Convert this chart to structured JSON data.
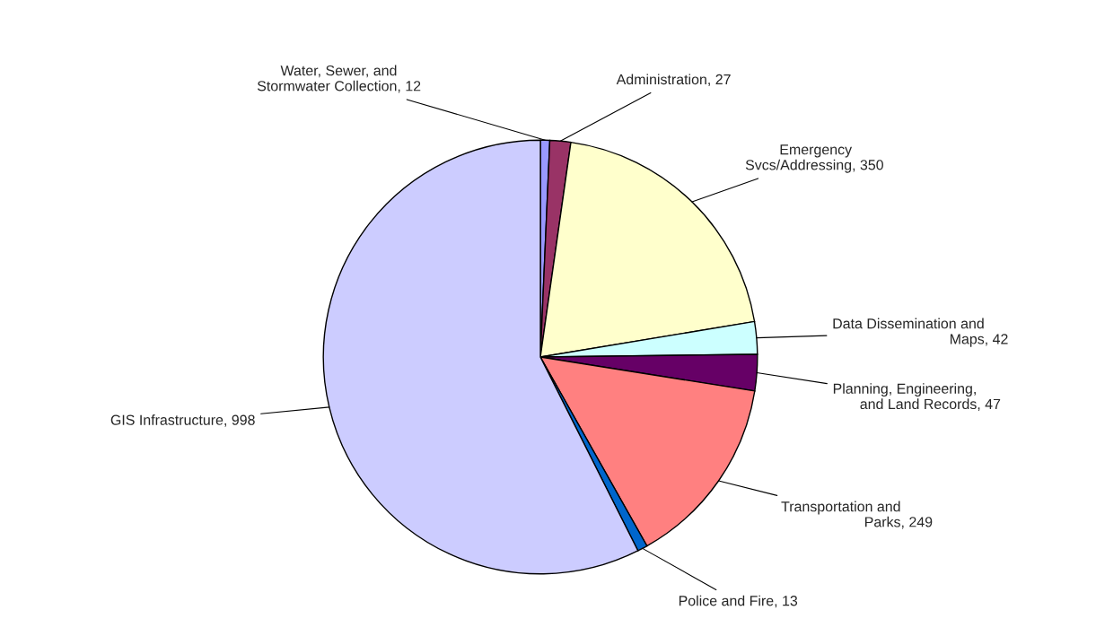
{
  "chart_data": {
    "type": "pie",
    "categories": [
      "Water, Sewer, and\nStormwater Collection",
      "Administration",
      "Emergency\nSvcs/Addressing",
      "Data Dissemination and\nMaps",
      "Planning, Engineering,\nand Land Records",
      "Transportation and\nParks",
      "Police and Fire",
      "GIS Infrastructure"
    ],
    "values": [
      12,
      27,
      350,
      42,
      47,
      249,
      13,
      998
    ],
    "colors": [
      "#9999ff",
      "#993366",
      "#ffffcc",
      "#ccffff",
      "#660066",
      "#ff8080",
      "#0066cc",
      "#ccccff"
    ],
    "value_labels": [
      ", 12",
      ", 27",
      ", 350",
      ", 42",
      ", 47",
      ", 249",
      ", 13",
      ", 998"
    ],
    "legend": false
  }
}
